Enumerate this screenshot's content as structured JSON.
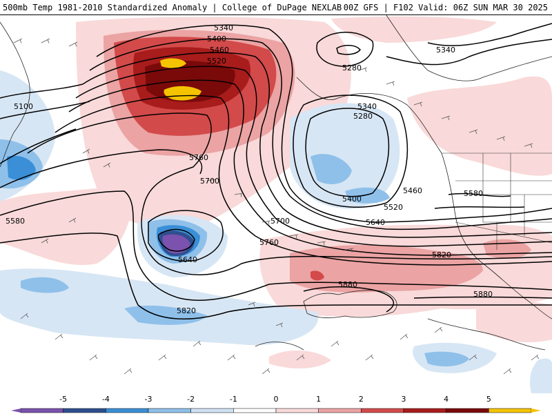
{
  "header": {
    "title_left": "500mb Temp 1981-2010 Standardized Anomaly | College of DuPage NEXLAB",
    "title_right": "00Z GFS | F102 Valid: 06Z SUN MAR 30 2025"
  },
  "colorbar": {
    "ticks": [
      "-5",
      "-4",
      "-3",
      "-2",
      "-1",
      "0",
      "1",
      "2",
      "3",
      "4",
      "5"
    ],
    "colors": [
      "#7b52ae",
      "#2e4f8f",
      "#3a8fd6",
      "#8fc0ea",
      "#cfe1f3",
      "#ffffff",
      "#f9d9d9",
      "#eba3a3",
      "#d34a4a",
      "#a81c1c",
      "#7a0a0a",
      "#f5c400"
    ]
  },
  "contour_labels": [
    "5340",
    "5400",
    "5460",
    "5520",
    "5100",
    "5760",
    "5700",
    "5580",
    "5640",
    "5820",
    "5280",
    "5340",
    "5280",
    "5400",
    "5460",
    "5520",
    "5640",
    "5700",
    "5760",
    "5820",
    "5880",
    "5880",
    "5340",
    "5580"
  ]
}
